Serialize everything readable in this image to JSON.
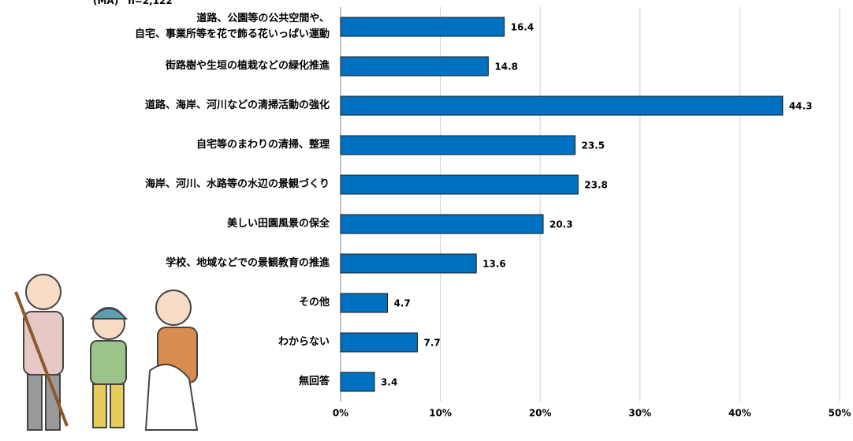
{
  "chart_data": {
    "type": "bar",
    "orientation": "horizontal",
    "note": "(MA)　n=2,122",
    "categories": [
      "道路、公園等の公共空間や、\n自宅、事業所等を花で飾る花いっぱい運動",
      "街路樹や生垣の植栽などの緑化推進",
      "道路、海岸、河川などの清掃活動の強化",
      "自宅等のまわりの清掃、整理",
      "海岸、河川、水路等の水辺の景観づくり",
      "美しい田園風景の保全",
      "学校、地域などでの景観教育の推進",
      "その他",
      "わからない",
      "無回答"
    ],
    "values": [
      16.4,
      14.8,
      44.3,
      23.5,
      23.8,
      20.3,
      13.6,
      4.7,
      7.7,
      3.4
    ],
    "color": "#0070c0",
    "xlim": [
      0,
      50
    ],
    "xticks": [
      {
        "value": 0,
        "label": "0%"
      },
      {
        "value": 10,
        "label": "10%"
      },
      {
        "value": 20,
        "label": "20%"
      },
      {
        "value": 30,
        "label": "30%"
      },
      {
        "value": 40,
        "label": "40%"
      },
      {
        "value": 50,
        "label": "50%"
      }
    ],
    "grid": true
  }
}
